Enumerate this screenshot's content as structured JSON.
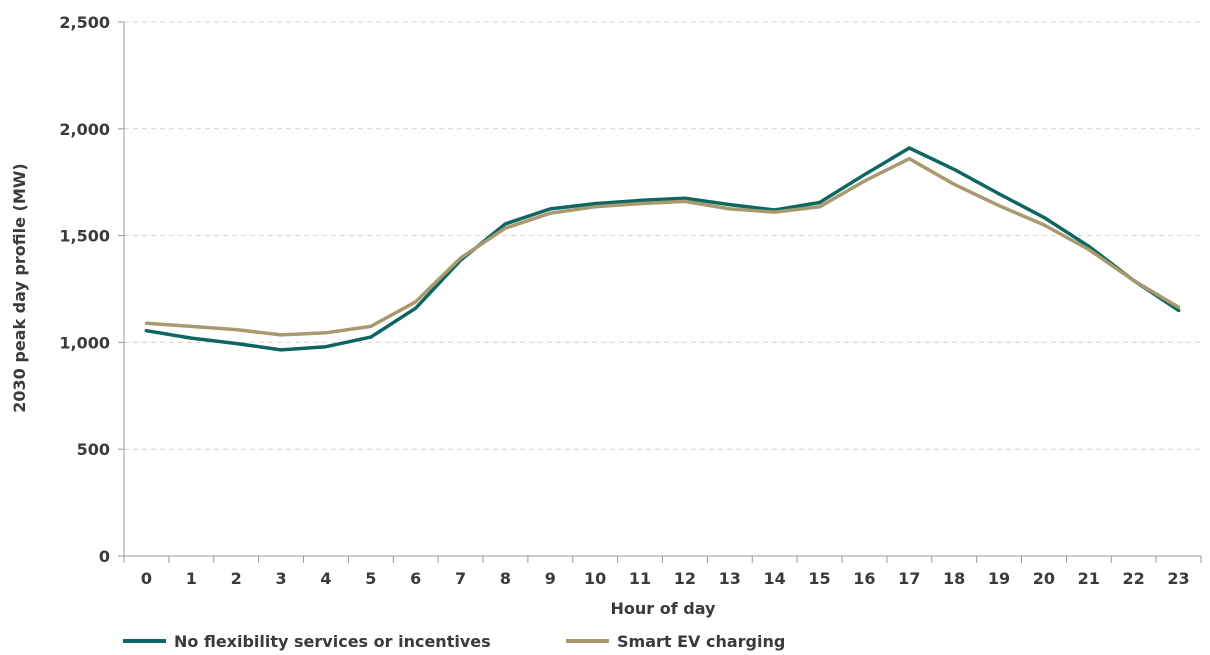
{
  "chart_data": {
    "type": "line",
    "title": "",
    "xlabel": "Hour of day",
    "ylabel": "2030 peak day profile (MW)",
    "categories": [
      "0",
      "1",
      "2",
      "3",
      "4",
      "5",
      "6",
      "7",
      "8",
      "9",
      "10",
      "11",
      "12",
      "13",
      "14",
      "15",
      "16",
      "17",
      "18",
      "19",
      "20",
      "21",
      "22",
      "23"
    ],
    "ylim": [
      0,
      2500
    ],
    "yticks": [
      0,
      500,
      1000,
      1500,
      2000,
      2500
    ],
    "ytick_labels": [
      "0",
      "500",
      "1,000",
      "1,500",
      "2,000",
      "2,500"
    ],
    "grid": true,
    "legend_position": "bottom-left",
    "series": [
      {
        "name": "No flexibility services or incentives",
        "color": "#0e6660",
        "values": [
          1055,
          1020,
          995,
          965,
          980,
          1025,
          1160,
          1385,
          1555,
          1625,
          1650,
          1665,
          1675,
          1645,
          1620,
          1655,
          1785,
          1910,
          1810,
          1695,
          1585,
          1450,
          1290,
          1150
        ]
      },
      {
        "name": "Smart EV charging",
        "color": "#a89a6e",
        "values": [
          1090,
          1075,
          1060,
          1035,
          1045,
          1075,
          1190,
          1395,
          1535,
          1605,
          1635,
          1650,
          1660,
          1625,
          1610,
          1635,
          1755,
          1860,
          1740,
          1640,
          1550,
          1435,
          1290,
          1165
        ]
      }
    ]
  }
}
